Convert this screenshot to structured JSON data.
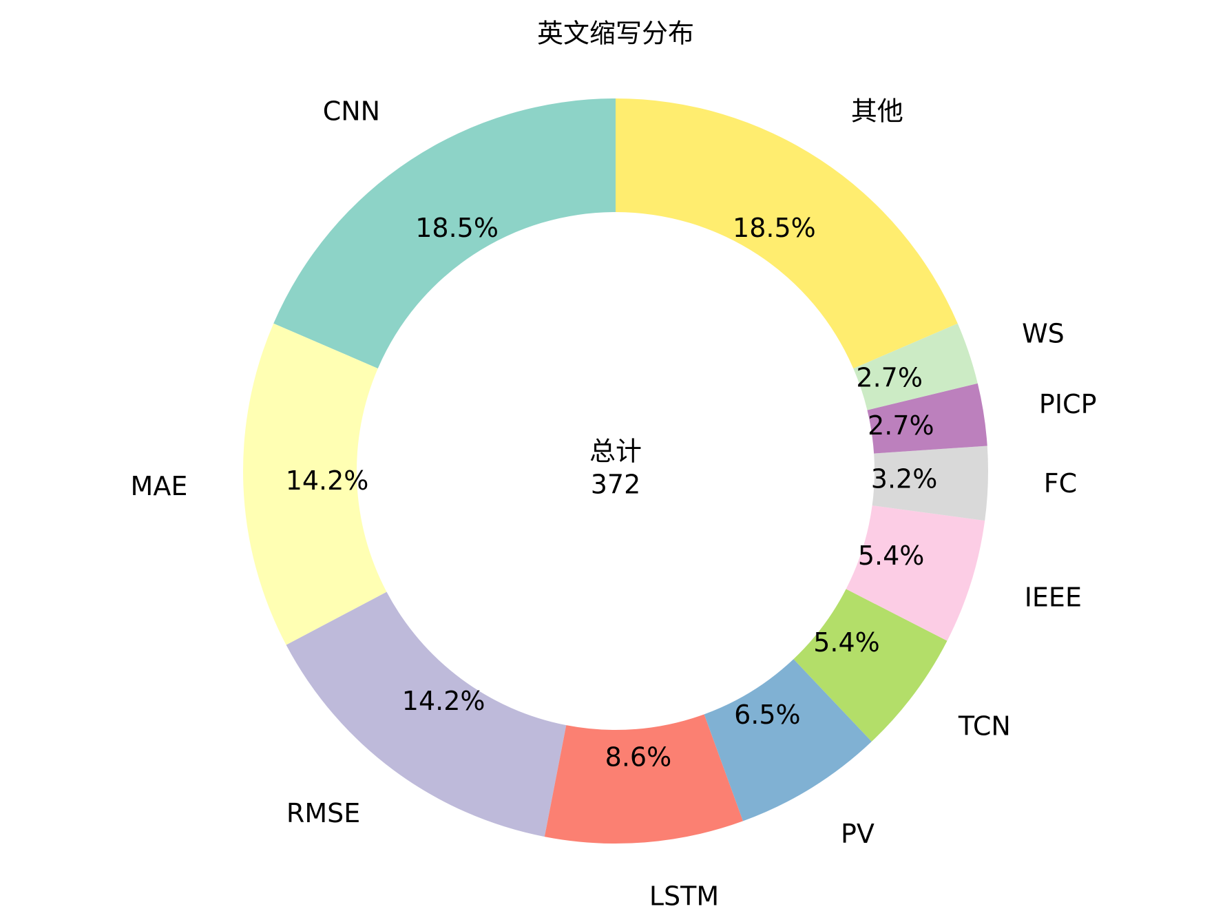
{
  "chart_data": {
    "type": "donut",
    "title": "英文缩写分布",
    "categories": [
      "CNN",
      "MAE",
      "RMSE",
      "LSTM",
      "PV",
      "TCN",
      "IEEE",
      "FC",
      "PICP",
      "WS",
      "其他"
    ],
    "values": [
      18.5,
      14.2,
      14.2,
      8.6,
      6.5,
      5.4,
      5.4,
      3.2,
      2.7,
      2.7,
      18.5
    ],
    "value_labels": [
      "18.5%",
      "14.2%",
      "14.2%",
      "8.6%",
      "6.5%",
      "5.4%",
      "5.4%",
      "3.2%",
      "2.7%",
      "2.7%",
      "18.5%"
    ],
    "colors": [
      "#8dd3c7",
      "#ffffb3",
      "#bebada",
      "#fb8072",
      "#80b1d3",
      "#b3de69",
      "#fccde5",
      "#d9d9d9",
      "#bc80bd",
      "#ccebc5",
      "#ffed6f"
    ],
    "center_label": "总计",
    "total": 372
  }
}
